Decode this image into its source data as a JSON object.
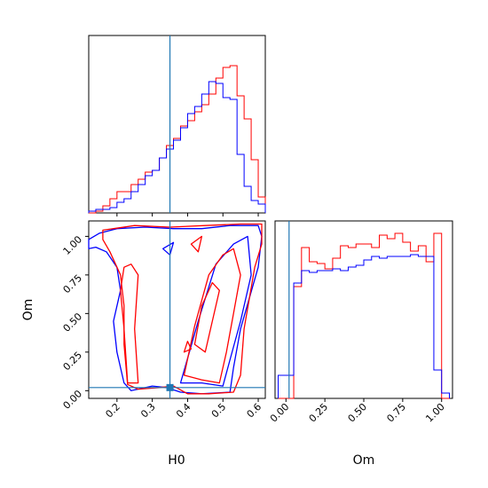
{
  "colors": {
    "series_red": "#ff0000",
    "series_blue": "#0000ff",
    "truth": "#1f77b4",
    "axes": "#000000",
    "background": "#ffffff"
  },
  "chart_data": {
    "type": "corner",
    "parameters": [
      "H0",
      "Om"
    ],
    "truth_values": {
      "H0": 0.35,
      "Om": 0.02
    },
    "series": [
      {
        "color": "#ff0000"
      },
      {
        "color": "#0000ff"
      }
    ],
    "panels": [
      {
        "id": "hist-H0",
        "type": "histogram",
        "xlim": [
          0.12,
          0.62
        ],
        "xticks": [
          0.2,
          0.3,
          0.4,
          0.5,
          0.6
        ],
        "ylim": [
          0,
          1
        ],
        "bin_edges": [
          0.12,
          0.14,
          0.16,
          0.18,
          0.2,
          0.22,
          0.24,
          0.26,
          0.28,
          0.3,
          0.32,
          0.34,
          0.36,
          0.38,
          0.4,
          0.42,
          0.44,
          0.46,
          0.48,
          0.5,
          0.52,
          0.54,
          0.56,
          0.58,
          0.6,
          0.62
        ],
        "series_values": [
          [
            0.0,
            0.01,
            0.04,
            0.08,
            0.12,
            0.12,
            0.16,
            0.19,
            0.23,
            0.24,
            0.31,
            0.38,
            0.42,
            0.49,
            0.52,
            0.57,
            0.61,
            0.67,
            0.76,
            0.82,
            0.83,
            0.66,
            0.53,
            0.3,
            0.09
          ],
          [
            0.01,
            0.02,
            0.02,
            0.03,
            0.06,
            0.08,
            0.12,
            0.16,
            0.21,
            0.24,
            0.31,
            0.36,
            0.41,
            0.48,
            0.56,
            0.6,
            0.67,
            0.74,
            0.73,
            0.65,
            0.64,
            0.33,
            0.15,
            0.07,
            0.05
          ]
        ]
      },
      {
        "id": "contour-H0-Om",
        "type": "contour",
        "xlabel": "H0",
        "ylabel": "Om",
        "xlim": [
          0.12,
          0.62
        ],
        "ylim": [
          -0.05,
          1.1
        ],
        "xticks": [
          0.2,
          0.3,
          0.4,
          0.5,
          0.6
        ],
        "yticks": [
          0.0,
          0.25,
          0.5,
          0.75,
          1.0
        ],
        "contours": [
          {
            "series": 1,
            "points": [
              [
                0.12,
                0.98
              ],
              [
                0.15,
                1.02
              ],
              [
                0.2,
                1.05
              ],
              [
                0.28,
                1.06
              ],
              [
                0.36,
                1.05
              ],
              [
                0.44,
                1.05
              ],
              [
                0.52,
                1.07
              ],
              [
                0.6,
                1.07
              ],
              [
                0.61,
                1.0
              ],
              [
                0.6,
                0.8
              ],
              [
                0.55,
                0.4
              ],
              [
                0.53,
                0.15
              ],
              [
                0.52,
                -0.01
              ],
              [
                0.44,
                -0.02
              ],
              [
                0.38,
                -0.01
              ],
              [
                0.34,
                0.02
              ],
              [
                0.3,
                0.03
              ],
              [
                0.24,
                0.0
              ],
              [
                0.22,
                0.05
              ],
              [
                0.2,
                0.25
              ],
              [
                0.19,
                0.45
              ],
              [
                0.21,
                0.65
              ],
              [
                0.2,
                0.8
              ],
              [
                0.17,
                0.9
              ],
              [
                0.14,
                0.93
              ],
              [
                0.12,
                0.92
              ]
            ]
          },
          {
            "series": 0,
            "points": [
              [
                0.16,
                1.04
              ],
              [
                0.25,
                1.07
              ],
              [
                0.35,
                1.06
              ],
              [
                0.45,
                1.07
              ],
              [
                0.55,
                1.08
              ],
              [
                0.61,
                1.08
              ],
              [
                0.61,
                0.95
              ],
              [
                0.59,
                0.8
              ],
              [
                0.56,
                0.4
              ],
              [
                0.55,
                0.1
              ],
              [
                0.53,
                -0.01
              ],
              [
                0.46,
                -0.02
              ],
              [
                0.4,
                -0.02
              ],
              [
                0.36,
                0.03
              ],
              [
                0.32,
                0.02
              ],
              [
                0.26,
                0.01
              ],
              [
                0.23,
                0.04
              ],
              [
                0.22,
                0.3
              ],
              [
                0.22,
                0.55
              ],
              [
                0.21,
                0.75
              ],
              [
                0.18,
                0.9
              ],
              [
                0.16,
                0.98
              ]
            ]
          },
          {
            "series": 0,
            "points": [
              [
                0.22,
                0.8
              ],
              [
                0.24,
                0.82
              ],
              [
                0.26,
                0.75
              ],
              [
                0.25,
                0.4
              ],
              [
                0.26,
                0.05
              ],
              [
                0.23,
                0.05
              ],
              [
                0.22,
                0.4
              ],
              [
                0.21,
                0.65
              ]
            ]
          },
          {
            "series": 1,
            "points": [
              [
                0.38,
                0.05
              ],
              [
                0.43,
                0.45
              ],
              [
                0.48,
                0.82
              ],
              [
                0.53,
                0.95
              ],
              [
                0.57,
                1.0
              ],
              [
                0.58,
                0.75
              ],
              [
                0.55,
                0.45
              ],
              [
                0.52,
                0.2
              ],
              [
                0.5,
                0.03
              ],
              [
                0.44,
                0.05
              ]
            ]
          },
          {
            "series": 0,
            "points": [
              [
                0.39,
                0.1
              ],
              [
                0.42,
                0.42
              ],
              [
                0.46,
                0.75
              ],
              [
                0.5,
                0.88
              ],
              [
                0.53,
                0.92
              ],
              [
                0.55,
                0.75
              ],
              [
                0.53,
                0.5
              ],
              [
                0.51,
                0.25
              ],
              [
                0.49,
                0.05
              ],
              [
                0.44,
                0.07
              ]
            ]
          },
          {
            "series": 0,
            "points": [
              [
                0.42,
                0.3
              ],
              [
                0.44,
                0.55
              ],
              [
                0.47,
                0.7
              ],
              [
                0.49,
                0.65
              ],
              [
                0.47,
                0.45
              ],
              [
                0.45,
                0.25
              ]
            ]
          },
          {
            "series": 1,
            "points": [
              [
                0.33,
                0.92
              ],
              [
                0.36,
                0.96
              ],
              [
                0.35,
                0.88
              ]
            ]
          },
          {
            "series": 0,
            "points": [
              [
                0.41,
                0.95
              ],
              [
                0.44,
                1.0
              ],
              [
                0.43,
                0.9
              ]
            ]
          },
          {
            "series": 0,
            "points": [
              [
                0.39,
                0.25
              ],
              [
                0.4,
                0.32
              ],
              [
                0.41,
                0.27
              ]
            ]
          }
        ]
      },
      {
        "id": "hist-Om",
        "type": "histogram",
        "xlabel": "Om",
        "xlim": [
          -0.07,
          1.07
        ],
        "xticks": [
          0.0,
          0.25,
          0.5,
          0.75,
          1.0
        ],
        "ylim": [
          0,
          1
        ],
        "bin_edges": [
          -0.05,
          0.0,
          0.05,
          0.1,
          0.15,
          0.2,
          0.25,
          0.3,
          0.35,
          0.4,
          0.45,
          0.5,
          0.55,
          0.6,
          0.65,
          0.7,
          0.75,
          0.8,
          0.85,
          0.9,
          0.95,
          1.0,
          1.05
        ],
        "series_values": [
          [
            0.0,
            0.0,
            0.63,
            0.85,
            0.77,
            0.76,
            0.73,
            0.79,
            0.86,
            0.85,
            0.87,
            0.87,
            0.85,
            0.92,
            0.9,
            0.93,
            0.88,
            0.83,
            0.86,
            0.77,
            0.93,
            0.0
          ],
          [
            0.13,
            0.13,
            0.65,
            0.72,
            0.71,
            0.72,
            0.72,
            0.73,
            0.72,
            0.74,
            0.75,
            0.78,
            0.8,
            0.79,
            0.8,
            0.8,
            0.8,
            0.81,
            0.8,
            0.8,
            0.16,
            0.03
          ]
        ]
      }
    ]
  }
}
